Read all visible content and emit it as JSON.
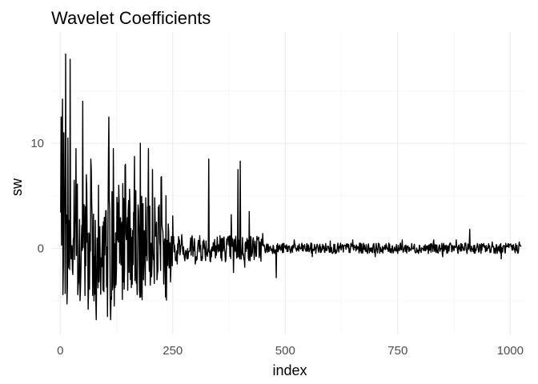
{
  "chart_data": {
    "type": "line",
    "title": "Wavelet Coefficients",
    "xlabel": "index",
    "ylabel": "sw",
    "xlim": [
      -20,
      1035
    ],
    "ylim": [
      -8.2,
      20.6
    ],
    "x_ticks": [
      0,
      250,
      500,
      750,
      1000
    ],
    "x_tick_labels": [
      "0",
      "250",
      "500",
      "750",
      "1000"
    ],
    "y_ticks": [
      0,
      10
    ],
    "y_tick_labels": [
      "0",
      "10"
    ],
    "x_minor_ticks": [
      125,
      375,
      625,
      875
    ],
    "y_minor_ticks": [
      -5,
      5,
      15
    ],
    "grid": true,
    "legend": "none",
    "line_color": "#000000",
    "series": [
      {
        "x_start": 1,
        "x_end": 1024,
        "points_count": 1024,
        "peaks": [
          {
            "x": 2,
            "y": 12.5
          },
          {
            "x": 5,
            "y": 14.2
          },
          {
            "x": 8,
            "y": 11.0
          },
          {
            "x": 12,
            "y": 18.5
          },
          {
            "x": 17,
            "y": 10.5
          },
          {
            "x": 22,
            "y": 18.0
          },
          {
            "x": 28,
            "y": 10.0
          },
          {
            "x": 35,
            "y": 9.5
          },
          {
            "x": 40,
            "y": 8.0
          },
          {
            "x": 50,
            "y": 14.0
          },
          {
            "x": 58,
            "y": 7.0
          },
          {
            "x": 68,
            "y": 8.5
          },
          {
            "x": 75,
            "y": 10.0
          },
          {
            "x": 85,
            "y": 6.0
          },
          {
            "x": 95,
            "y": 7.5
          },
          {
            "x": 108,
            "y": 12.5
          },
          {
            "x": 118,
            "y": 9.5
          },
          {
            "x": 130,
            "y": 6.0
          },
          {
            "x": 145,
            "y": 8.0
          },
          {
            "x": 150,
            "y": 5.0
          },
          {
            "x": 168,
            "y": 5.5
          },
          {
            "x": 178,
            "y": 10.0
          },
          {
            "x": 185,
            "y": 5.0
          },
          {
            "x": 196,
            "y": 9.5
          },
          {
            "x": 205,
            "y": 7.5
          },
          {
            "x": 215,
            "y": 6.0
          },
          {
            "x": 235,
            "y": 5.0
          },
          {
            "x": 248,
            "y": 1.0
          },
          {
            "x": 270,
            "y": 1.3
          },
          {
            "x": 290,
            "y": 1.0
          },
          {
            "x": 310,
            "y": 1.2
          },
          {
            "x": 330,
            "y": 8.5
          },
          {
            "x": 355,
            "y": 1.2
          },
          {
            "x": 380,
            "y": 3.2
          },
          {
            "x": 395,
            "y": 7.5
          },
          {
            "x": 400,
            "y": 8.3
          },
          {
            "x": 420,
            "y": 3.5
          },
          {
            "x": 450,
            "y": 1.4
          },
          {
            "x": 480,
            "y": 1.0
          },
          {
            "x": 520,
            "y": 0.8
          },
          {
            "x": 560,
            "y": 1.0
          },
          {
            "x": 600,
            "y": 0.7
          },
          {
            "x": 650,
            "y": 0.8
          },
          {
            "x": 700,
            "y": 0.7
          },
          {
            "x": 760,
            "y": 0.8
          },
          {
            "x": 830,
            "y": 0.8
          },
          {
            "x": 880,
            "y": 0.8
          },
          {
            "x": 910,
            "y": 1.8
          },
          {
            "x": 960,
            "y": 0.6
          },
          {
            "x": 1020,
            "y": 0.6
          }
        ],
        "troughs": [
          {
            "x": 15,
            "y": -5.3
          },
          {
            "x": 28,
            "y": -2.5
          },
          {
            "x": 40,
            "y": -3.5
          },
          {
            "x": 55,
            "y": -4.5
          },
          {
            "x": 62,
            "y": -5.8
          },
          {
            "x": 75,
            "y": -5.0
          },
          {
            "x": 80,
            "y": -6.8
          },
          {
            "x": 95,
            "y": -4.0
          },
          {
            "x": 105,
            "y": -6.5
          },
          {
            "x": 112,
            "y": -6.8
          },
          {
            "x": 120,
            "y": -5.5
          },
          {
            "x": 140,
            "y": -3.2
          },
          {
            "x": 150,
            "y": -4.0
          },
          {
            "x": 170,
            "y": -2.5
          },
          {
            "x": 185,
            "y": -3.0
          },
          {
            "x": 200,
            "y": -3.5
          },
          {
            "x": 215,
            "y": -3.0
          },
          {
            "x": 230,
            "y": -3.4
          },
          {
            "x": 245,
            "y": -3.2
          },
          {
            "x": 260,
            "y": -1.5
          },
          {
            "x": 300,
            "y": -1.5
          },
          {
            "x": 385,
            "y": -2.3
          },
          {
            "x": 410,
            "y": -1.8
          },
          {
            "x": 480,
            "y": -2.8
          },
          {
            "x": 560,
            "y": -0.8
          },
          {
            "x": 700,
            "y": -0.8
          },
          {
            "x": 850,
            "y": -0.8
          },
          {
            "x": 980,
            "y": -1.0
          }
        ],
        "envelope": [
          {
            "x_from": 1,
            "x_to": 250,
            "amplitude": 5.0
          },
          {
            "x_from": 250,
            "x_to": 450,
            "amplitude": 1.3
          },
          {
            "x_from": 450,
            "x_to": 1024,
            "amplitude": 0.5
          }
        ]
      }
    ]
  }
}
